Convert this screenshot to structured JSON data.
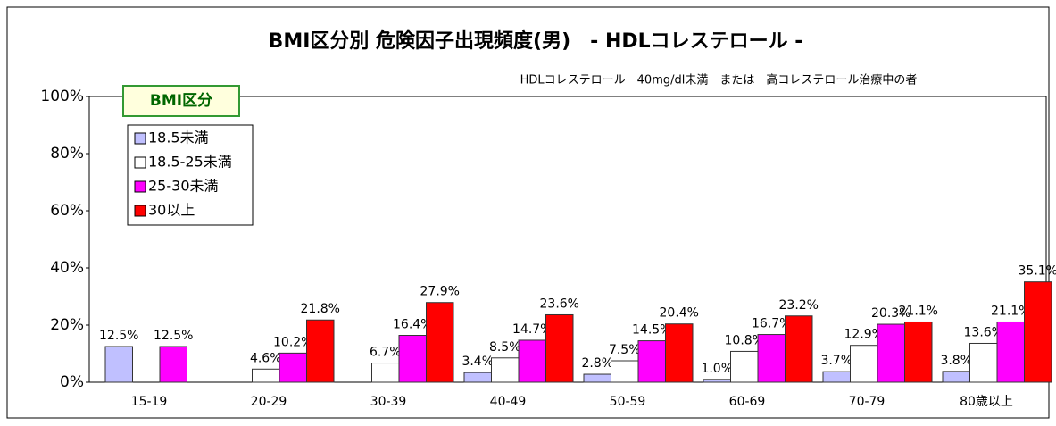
{
  "chart_data": {
    "type": "bar",
    "title": "BMI区分別 危険因子出現頻度(男)　- HDLコレステロール -",
    "subtitle": "HDLコレステロール　40mg/dl未満　または　高コレステロール治療中の者",
    "legend_title": "BMI区分",
    "categories": [
      "15-19",
      "20-29",
      "30-39",
      "40-49",
      "50-59",
      "60-69",
      "70-79",
      "80歳以上"
    ],
    "series": [
      {
        "name": "18.5未満",
        "color": "#c0c0ff",
        "values": [
          12.5,
          null,
          null,
          3.4,
          2.8,
          1.0,
          3.7,
          3.8
        ],
        "value_labels": [
          "12.5%",
          null,
          null,
          "3.4%",
          "2.8%",
          "1.0%",
          "3.7%",
          "3.8%"
        ]
      },
      {
        "name": "18.5-25未満",
        "color": "#ffffff",
        "values": [
          null,
          4.6,
          6.7,
          8.5,
          7.5,
          10.8,
          12.9,
          13.6
        ],
        "value_labels": [
          null,
          "4.6%",
          "6.7%",
          "8.5%",
          "7.5%",
          "10.8%",
          "12.9%",
          "13.6%"
        ]
      },
      {
        "name": "25-30未満",
        "color": "#ff00ff",
        "values": [
          12.5,
          10.2,
          16.4,
          14.7,
          14.5,
          16.7,
          20.3,
          21.1
        ],
        "value_labels": [
          "12.5%",
          "10.2%",
          "16.4%",
          "14.7%",
          "14.5%",
          "16.7%",
          "20.3%",
          "21.1%"
        ]
      },
      {
        "name": "30以上",
        "color": "#ff0000",
        "values": [
          null,
          21.8,
          27.9,
          23.6,
          20.4,
          23.2,
          21.1,
          35.1
        ],
        "value_labels": [
          null,
          "21.8%",
          "27.9%",
          "23.6%",
          "20.4%",
          "23.2%",
          "21.1%",
          "35.1%"
        ]
      }
    ],
    "ylim": [
      0,
      100
    ],
    "yticks": [
      {
        "value": 0,
        "label": "0%"
      },
      {
        "value": 20,
        "label": "20%"
      },
      {
        "value": 40,
        "label": "40%"
      },
      {
        "value": 60,
        "label": "60%"
      },
      {
        "value": 80,
        "label": "80%"
      },
      {
        "value": 100,
        "label": "100%"
      }
    ],
    "grid": false,
    "legend": "upper left"
  }
}
